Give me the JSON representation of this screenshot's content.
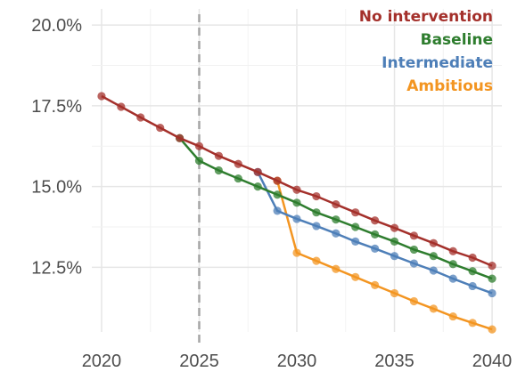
{
  "chart_data": {
    "type": "line",
    "x": [
      2020,
      2021,
      2022,
      2023,
      2024,
      2025,
      2026,
      2027,
      2028,
      2029,
      2030,
      2031,
      2032,
      2033,
      2034,
      2035,
      2036,
      2037,
      2038,
      2039,
      2040
    ],
    "x_ticks": [
      2020,
      2025,
      2030,
      2035,
      2040
    ],
    "x_tick_labels": [
      "2020",
      "2025",
      "2030",
      "2035",
      "2040"
    ],
    "y_ticks": [
      12.5,
      15.0,
      17.5,
      20.0
    ],
    "y_tick_labels": [
      "12.5%",
      "15.0%",
      "17.5%",
      "20.0%"
    ],
    "xlim": [
      2019.5,
      2040.5
    ],
    "ylim": [
      10.5,
      20.5
    ],
    "grid": true,
    "reference_line_x": 2025,
    "legend_placement": "top-right",
    "series": [
      {
        "name": "No intervention",
        "color": "#a4302b",
        "x": [
          2020,
          2021,
          2022,
          2023,
          2024,
          2025,
          2026,
          2027,
          2028,
          2029,
          2030,
          2031,
          2032,
          2033,
          2034,
          2035,
          2036,
          2037,
          2038,
          2039,
          2040
        ],
        "values": [
          17.8,
          17.47,
          17.14,
          16.82,
          16.5,
          16.25,
          15.95,
          15.7,
          15.45,
          15.18,
          14.9,
          14.7,
          14.45,
          14.2,
          13.95,
          13.72,
          13.48,
          13.25,
          13.0,
          12.8,
          12.55
        ]
      },
      {
        "name": "Baseline",
        "color": "#2e7d2e",
        "x": [
          2024,
          2025,
          2026,
          2027,
          2028,
          2029,
          2030,
          2031,
          2032,
          2033,
          2034,
          2035,
          2036,
          2037,
          2038,
          2039,
          2040
        ],
        "values": [
          16.5,
          15.8,
          15.5,
          15.25,
          15.0,
          14.75,
          14.5,
          14.2,
          13.98,
          13.75,
          13.52,
          13.3,
          13.05,
          12.85,
          12.6,
          12.38,
          12.15
        ]
      },
      {
        "name": "Intermediate",
        "color": "#4e7fb8",
        "x": [
          2028,
          2029,
          2030,
          2031,
          2032,
          2033,
          2034,
          2035,
          2036,
          2037,
          2038,
          2039,
          2040
        ],
        "values": [
          15.45,
          14.25,
          14.0,
          13.78,
          13.55,
          13.3,
          13.08,
          12.85,
          12.62,
          12.4,
          12.15,
          11.92,
          11.7
        ]
      },
      {
        "name": "Ambitious",
        "color": "#f39521",
        "x": [
          2029,
          2030,
          2031,
          2032,
          2033,
          2034,
          2035,
          2036,
          2037,
          2038,
          2039,
          2040
        ],
        "values": [
          15.18,
          12.95,
          12.7,
          12.45,
          12.2,
          11.95,
          11.7,
          11.45,
          11.22,
          10.98,
          10.78,
          10.58
        ]
      }
    ]
  }
}
